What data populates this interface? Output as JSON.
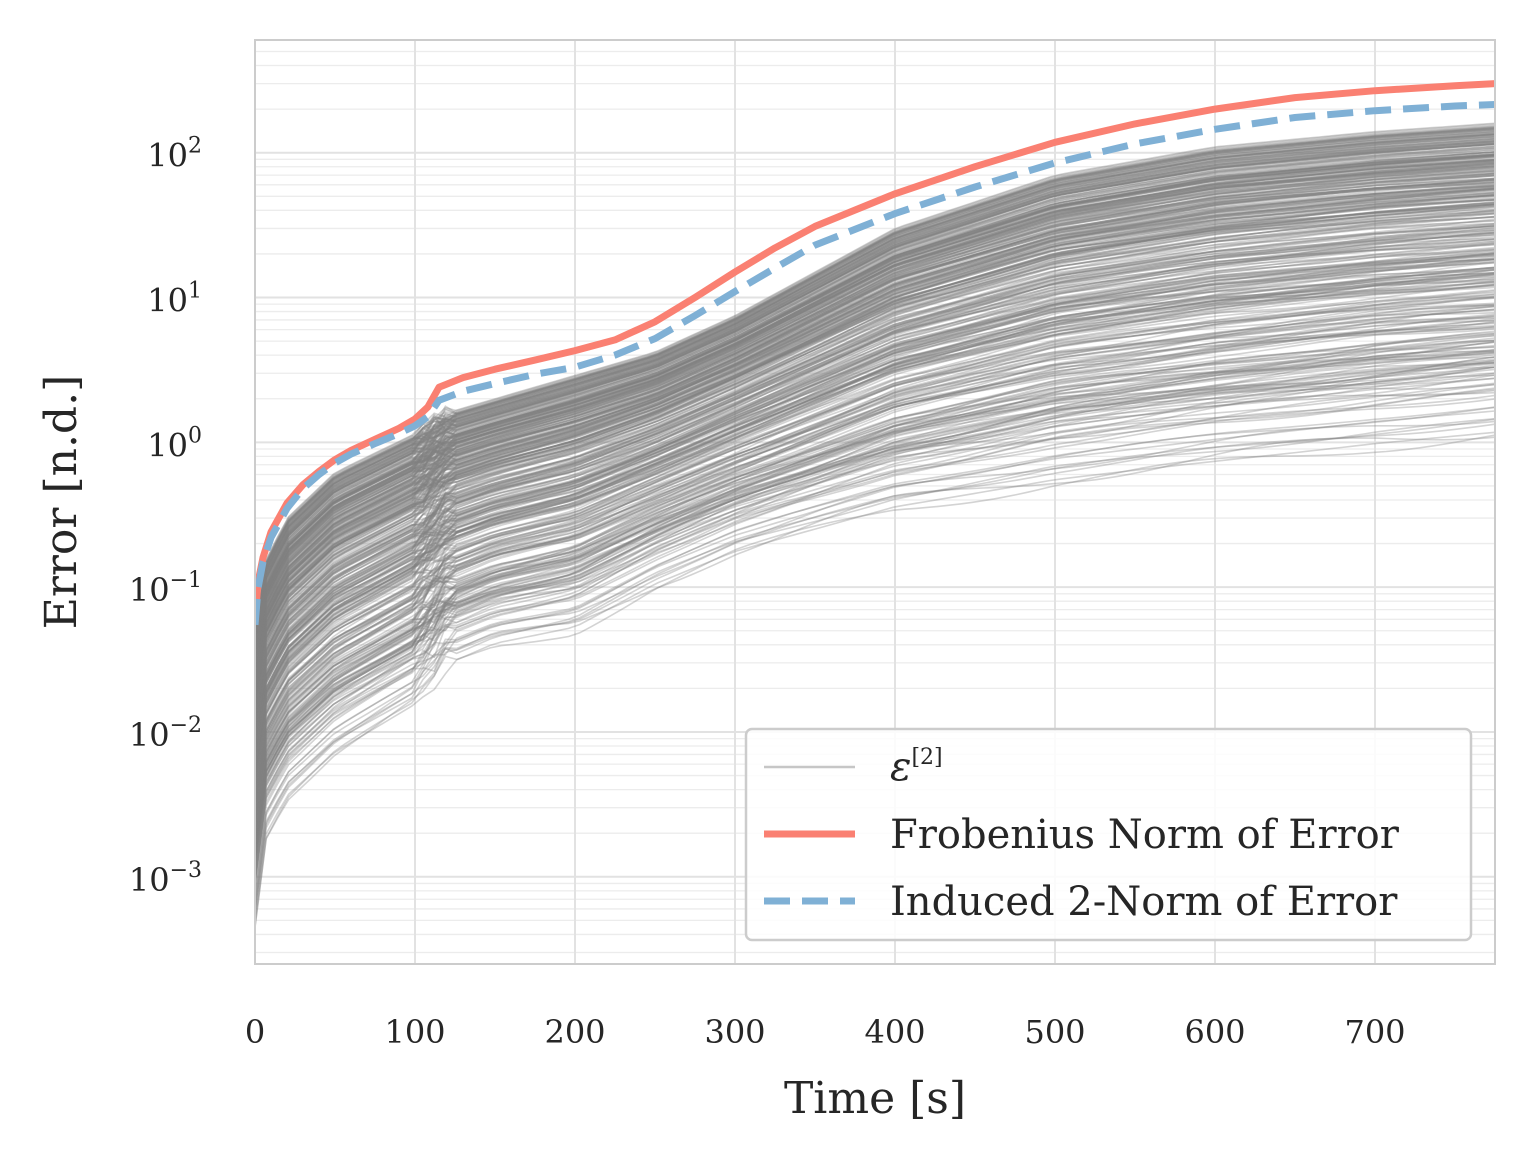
{
  "chart_data": {
    "type": "line",
    "title": "",
    "xlabel": "Time [s]",
    "ylabel": "Error [n.d.]",
    "yscale": "log",
    "xlim": [
      0,
      775
    ],
    "ylim": [
      0.00025,
      600
    ],
    "grid": true,
    "legend_position": "lower-right",
    "x_ticks": [
      0,
      100,
      200,
      300,
      400,
      500,
      600,
      700
    ],
    "x_tick_labels": [
      "0",
      "100",
      "200",
      "300",
      "400",
      "500",
      "600",
      "700"
    ],
    "y_ticks": [
      {
        "value": 0.001,
        "base": "10",
        "exp": "−3"
      },
      {
        "value": 0.01,
        "base": "10",
        "exp": "−2"
      },
      {
        "value": 0.1,
        "base": "10",
        "exp": "−1"
      },
      {
        "value": 1,
        "base": "10",
        "exp": "0"
      },
      {
        "value": 10,
        "base": "10",
        "exp": "1"
      },
      {
        "value": 100,
        "base": "10",
        "exp": "2"
      }
    ],
    "series": [
      {
        "name": "Frobenius Norm of Error",
        "color": "#fa8072",
        "style": "solid",
        "x": [
          0,
          2,
          5,
          10,
          20,
          30,
          40,
          50,
          60,
          75,
          90,
          100,
          108,
          115,
          130,
          150,
          175,
          200,
          225,
          250,
          275,
          300,
          325,
          350,
          400,
          450,
          500,
          550,
          600,
          650,
          700,
          750,
          775
        ],
        "y": [
          0.06,
          0.11,
          0.16,
          0.24,
          0.38,
          0.51,
          0.63,
          0.76,
          0.88,
          1.05,
          1.25,
          1.45,
          1.75,
          2.4,
          2.8,
          3.2,
          3.7,
          4.3,
          5.1,
          6.8,
          10,
          15,
          22,
          31,
          52,
          80,
          118,
          158,
          200,
          240,
          268,
          290,
          300
        ]
      },
      {
        "name": "Induced 2-Norm of Error",
        "color": "#7fb0d5",
        "style": "dashed",
        "x": [
          0,
          2,
          5,
          10,
          20,
          30,
          40,
          50,
          60,
          75,
          90,
          100,
          108,
          115,
          130,
          150,
          175,
          200,
          225,
          250,
          275,
          300,
          325,
          350,
          400,
          450,
          500,
          550,
          600,
          650,
          700,
          750,
          775
        ],
        "y": [
          0.055,
          0.1,
          0.15,
          0.22,
          0.35,
          0.48,
          0.6,
          0.72,
          0.83,
          0.98,
          1.15,
          1.3,
          1.5,
          1.95,
          2.25,
          2.55,
          2.95,
          3.3,
          4.0,
          5.2,
          7.5,
          11,
          16,
          23,
          38,
          58,
          85,
          115,
          145,
          175,
          195,
          210,
          215
        ]
      },
      {
        "name": "ε",
        "name_superscript": "[2]",
        "color": "#808080",
        "style": "thin-translucent-ensemble",
        "envelope_x": [
          0,
          5,
          20,
          50,
          100,
          120,
          150,
          200,
          250,
          300,
          400,
          500,
          600,
          700,
          775
        ],
        "envelope_upper": [
          0.05,
          0.14,
          0.3,
          0.62,
          1.15,
          1.6,
          2.0,
          2.9,
          4.2,
          7.5,
          30,
          70,
          110,
          140,
          160
        ],
        "envelope_lower": [
          0.0004,
          0.0015,
          0.003,
          0.006,
          0.013,
          0.025,
          0.035,
          0.045,
          0.09,
          0.15,
          0.3,
          0.45,
          0.6,
          0.8,
          0.95
        ]
      }
    ]
  }
}
